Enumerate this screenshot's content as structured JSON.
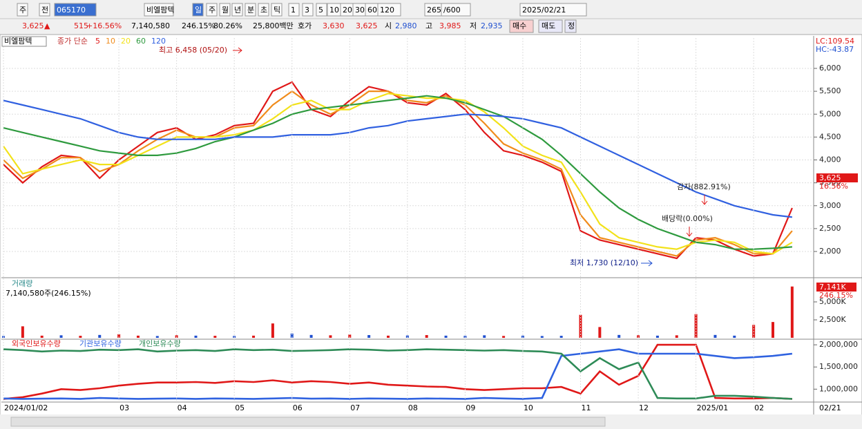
{
  "toolbar": {
    "items": [
      "주",
      "전",
      "065170",
      "비엘팜텍",
      "일",
      "주",
      "월",
      "년",
      "분",
      "초",
      "틱",
      "1",
      "3",
      "5",
      "10",
      "20",
      "30",
      "60",
      "120",
      "265",
      "/600",
      "2025/02/21"
    ]
  },
  "quote": {
    "items": [
      "3,625",
      "▲",
      "515",
      "+16.56%",
      "7,140,580",
      "246.15%",
      "80.26%",
      "25,800백만",
      "호가",
      "3,630",
      "3,625",
      "시",
      "2,980",
      "고",
      "3,985",
      "저",
      "2,935",
      "매수",
      "매도",
      "정"
    ]
  },
  "chart_data": [
    {
      "type": "line",
      "title": "비엘팜텍",
      "legend_label": "종가 단순",
      "grid": true,
      "ylim": [
        1457,
        6664
      ],
      "yticks": [
        {
          "value": 2000,
          "label": "2,000"
        },
        {
          "value": 2500,
          "label": "2,500"
        },
        {
          "value": 3000,
          "label": "3,000"
        },
        {
          "value": 3500,
          "label": "3,500"
        },
        {
          "value": 4000,
          "label": "4,000"
        },
        {
          "value": 4500,
          "label": "4,500"
        },
        {
          "value": 5000,
          "label": "5,000"
        },
        {
          "value": 5500,
          "label": "5,500"
        },
        {
          "value": 6000,
          "label": "6,000"
        }
      ],
      "corner_labels": [
        "LC:109.54",
        "HC:-43.87"
      ],
      "last_labels": [
        "3,625",
        "16.56%"
      ],
      "annotations": [
        "최고 6,458 (05/20)",
        "최저 1,730 (12/10)",
        "감자(882.91%)",
        "배당락(0.00%)"
      ],
      "series": [
        {
          "name": "5",
          "color": "#e01818",
          "values": [
            3900,
            3500,
            3850,
            4100,
            4050,
            3600,
            4000,
            4300,
            4600,
            4700,
            4450,
            4550,
            4750,
            4800,
            5500,
            5700,
            5100,
            4950,
            5300,
            5600,
            5500,
            5250,
            5200,
            5450,
            5100,
            4600,
            4200,
            4100,
            3950,
            3750,
            2450,
            2250,
            2150,
            2050,
            1950,
            1850,
            2300,
            2250,
            2050,
            1900,
            1950,
            2950
          ]
        },
        {
          "name": "10",
          "color": "#f08c1c",
          "values": [
            4000,
            3600,
            3800,
            4050,
            4050,
            3750,
            3900,
            4200,
            4450,
            4650,
            4500,
            4500,
            4700,
            4750,
            5200,
            5500,
            5200,
            5000,
            5200,
            5500,
            5500,
            5300,
            5250,
            5400,
            5200,
            4800,
            4350,
            4150,
            4000,
            3800,
            2800,
            2300,
            2200,
            2100,
            2000,
            1900,
            2250,
            2300,
            2150,
            1950,
            1950,
            2450
          ]
        },
        {
          "name": "20",
          "color": "#f2e21a",
          "values": [
            4300,
            3700,
            3800,
            3900,
            4000,
            3900,
            3900,
            4100,
            4300,
            4500,
            4500,
            4500,
            4550,
            4650,
            4900,
            5200,
            5300,
            5100,
            5100,
            5300,
            5450,
            5400,
            5350,
            5350,
            5300,
            5050,
            4700,
            4300,
            4100,
            3950,
            3300,
            2600,
            2300,
            2200,
            2100,
            2050,
            2200,
            2250,
            2200,
            2000,
            1950,
            2200
          ]
        },
        {
          "name": "60",
          "color": "#2e9a3e",
          "values": [
            4700,
            4600,
            4500,
            4400,
            4300,
            4200,
            4150,
            4100,
            4100,
            4150,
            4250,
            4400,
            4500,
            4650,
            4800,
            5000,
            5100,
            5150,
            5200,
            5250,
            5300,
            5350,
            5400,
            5350,
            5250,
            5100,
            4950,
            4700,
            4450,
            4100,
            3700,
            3300,
            2950,
            2700,
            2500,
            2350,
            2200,
            2150,
            2050,
            2050,
            2070,
            2100
          ]
        },
        {
          "name": "120",
          "color": "#3060e0",
          "values": [
            5300,
            5200,
            5100,
            5000,
            4900,
            4750,
            4600,
            4500,
            4450,
            4450,
            4450,
            4450,
            4500,
            4500,
            4500,
            4550,
            4550,
            4550,
            4600,
            4700,
            4750,
            4850,
            4900,
            4950,
            5000,
            4980,
            4950,
            4900,
            4800,
            4700,
            4500,
            4300,
            4100,
            3900,
            3700,
            3500,
            3300,
            3150,
            3000,
            2900,
            2800,
            2750
          ]
        }
      ]
    },
    {
      "type": "bar",
      "title": "거래량",
      "subtitle": "7,140,580주(246.15%)",
      "ylim": [
        0,
        7500000
      ],
      "yticks": [
        {
          "value": 2500000,
          "label": "2,500K"
        },
        {
          "value": 5000000,
          "label": "5,000K"
        }
      ],
      "last_labels": [
        "7,141K",
        "246.15%"
      ],
      "values": [
        250000,
        1600000,
        300000,
        350000,
        280000,
        400000,
        500000,
        300000,
        250000,
        350000,
        300000,
        280000,
        260000,
        300000,
        2000000,
        600000,
        400000,
        350000,
        450000,
        380000,
        300000,
        320000,
        380000,
        300000,
        280000,
        350000,
        260000,
        300000,
        250000,
        280000,
        3200000,
        1500000,
        400000,
        350000,
        300000,
        350000,
        3300000,
        400000,
        300000,
        1800000,
        2200000,
        7140580
      ],
      "colors": [
        "#2050d0",
        "#e01818",
        "#e01818",
        "#2050d0",
        "#e01818",
        "#2050d0",
        "#e01818",
        "#e01818",
        "#2050d0",
        "#e01818",
        "#2050d0",
        "#e01818",
        "#2050d0",
        "#e01818",
        "#e01818",
        "#2050d0",
        "#2050d0",
        "#e01818",
        "#e01818",
        "#2050d0",
        "#e01818",
        "#2050d0",
        "#e01818",
        "#2050d0",
        "#2050d0",
        "#2050d0",
        "#e01818",
        "#2050d0",
        "#2050d0",
        "#2050d0",
        "#e01818",
        "#e01818",
        "#2050d0",
        "#e01818",
        "#2050d0",
        "#e01818",
        "#e01818",
        "#2050d0",
        "#2050d0",
        "#e01818",
        "#e01818",
        "#e01818"
      ]
    },
    {
      "type": "line",
      "ylim": [
        740000,
        2080000
      ],
      "yticks": [
        {
          "value": 1000000,
          "label": "1,000,000"
        },
        {
          "value": 1500000,
          "label": "1,500,000"
        },
        {
          "value": 2000000,
          "label": "2,000,000"
        }
      ],
      "categories": [
        "2024/01/02",
        null,
        null,
        null,
        null,
        null,
        "03",
        null,
        null,
        "04",
        null,
        null,
        "05",
        null,
        null,
        "06",
        null,
        null,
        "07",
        null,
        null,
        "08",
        null,
        null,
        "09",
        null,
        null,
        "10",
        null,
        null,
        "11",
        null,
        null,
        "12",
        null,
        null,
        "2025/01",
        null,
        null,
        "02",
        null,
        "02/21"
      ],
      "series": [
        {
          "name": "외국인보유수량",
          "color": "#e01818",
          "values": [
            780000,
            820000,
            900000,
            1000000,
            980000,
            1020000,
            1080000,
            1120000,
            1150000,
            1150000,
            1160000,
            1140000,
            1180000,
            1160000,
            1200000,
            1150000,
            1180000,
            1160000,
            1120000,
            1150000,
            1100000,
            1080000,
            1060000,
            1050000,
            1000000,
            980000,
            1000000,
            1020000,
            1020000,
            1050000,
            900000,
            1400000,
            1100000,
            1300000,
            2000000,
            2000000,
            2000000,
            800000,
            790000,
            790000,
            800000,
            780000
          ]
        },
        {
          "name": "기관보유수량",
          "color": "#2f62e0",
          "values": [
            790000,
            780000,
            785000,
            790000,
            780000,
            800000,
            790000,
            780000,
            785000,
            790000,
            780000,
            790000,
            785000,
            780000,
            790000,
            800000,
            785000,
            790000,
            780000,
            790000,
            785000,
            780000,
            790000,
            785000,
            780000,
            800000,
            790000,
            780000,
            800000,
            1750000,
            1800000,
            1850000,
            1900000,
            1800000,
            1800000,
            1800000,
            1800000,
            1750000,
            1700000,
            1720000,
            1750000,
            1800000
          ]
        },
        {
          "name": "개인보유수량",
          "color": "#2e8b57",
          "values": [
            1900000,
            1880000,
            1850000,
            1870000,
            1860000,
            1890000,
            1880000,
            1900000,
            1850000,
            1870000,
            1880000,
            1860000,
            1900000,
            1880000,
            1890000,
            1860000,
            1870000,
            1880000,
            1900000,
            1890000,
            1870000,
            1880000,
            1900000,
            1890000,
            1880000,
            1870000,
            1880000,
            1860000,
            1850000,
            1800000,
            1400000,
            1700000,
            1450000,
            1600000,
            800000,
            790000,
            790000,
            850000,
            850000,
            830000,
            800000,
            780000
          ]
        }
      ]
    }
  ]
}
